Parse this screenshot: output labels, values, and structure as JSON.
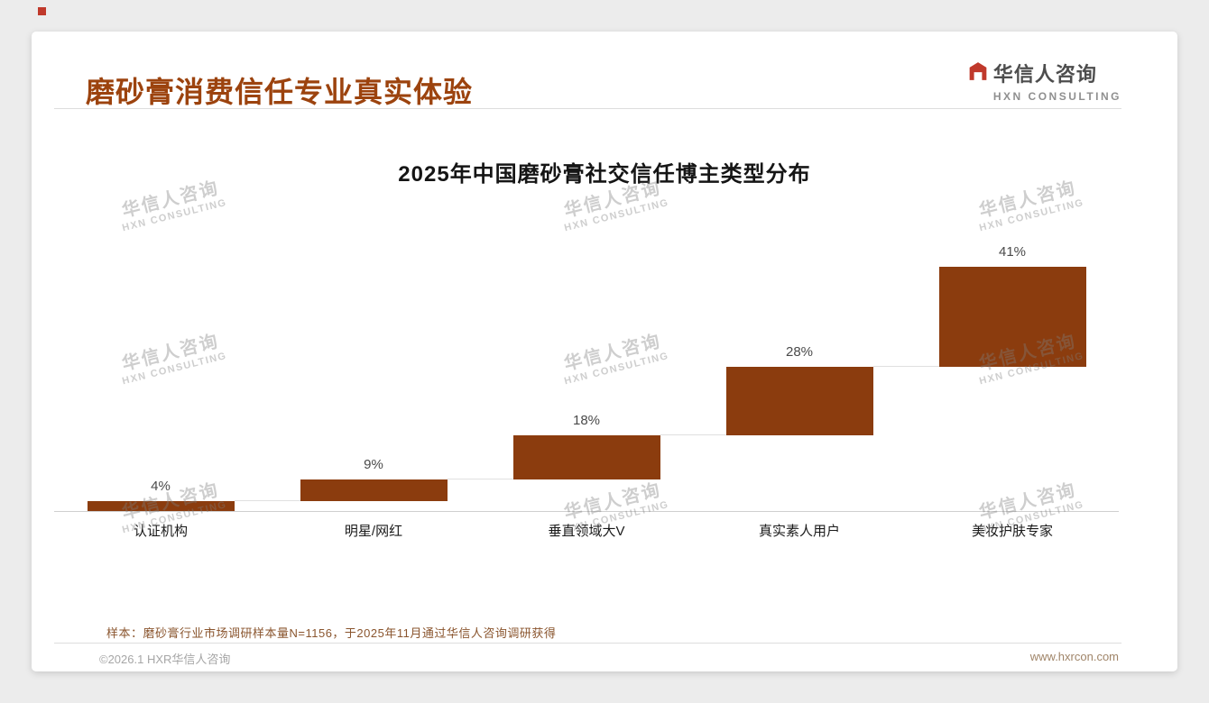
{
  "page": {
    "header_title": "磨砂膏消费信任专业真实体验",
    "logo": {
      "name": "华信人咨询",
      "subtitle": "HXN CONSULTING",
      "icon_color": "#c0392b"
    },
    "note": "样本：磨砂膏行业市场调研样本量N=1156，于2025年11月通过华信人咨询调研获得",
    "footer": {
      "left": "©2026.1 HXR华信人咨询",
      "right": "www.hxrcon.com"
    },
    "watermark": {
      "line1": "华信人咨询",
      "line2": "HXN CONSULTING"
    }
  },
  "chart_data": {
    "type": "bar",
    "subtype": "ascending-waterfall-steps",
    "title": "2025年中国磨砂膏社交信任博主类型分布",
    "categories": [
      "认证机构",
      "明星/网红",
      "垂直领域大V",
      "真实素人用户",
      "美妆护肤专家"
    ],
    "values": [
      4,
      9,
      18,
      28,
      41
    ],
    "labels": [
      "4%",
      "9%",
      "18%",
      "28%",
      "41%"
    ],
    "unit": "%",
    "ylim": [
      0,
      100
    ],
    "cumulative": [
      4,
      13,
      31,
      59,
      100
    ],
    "bar_color": "#8b3c0e",
    "value_label_color": "#4a4a4a",
    "baseline_color": "#cfcfcf",
    "grid": false,
    "legend": false
  }
}
